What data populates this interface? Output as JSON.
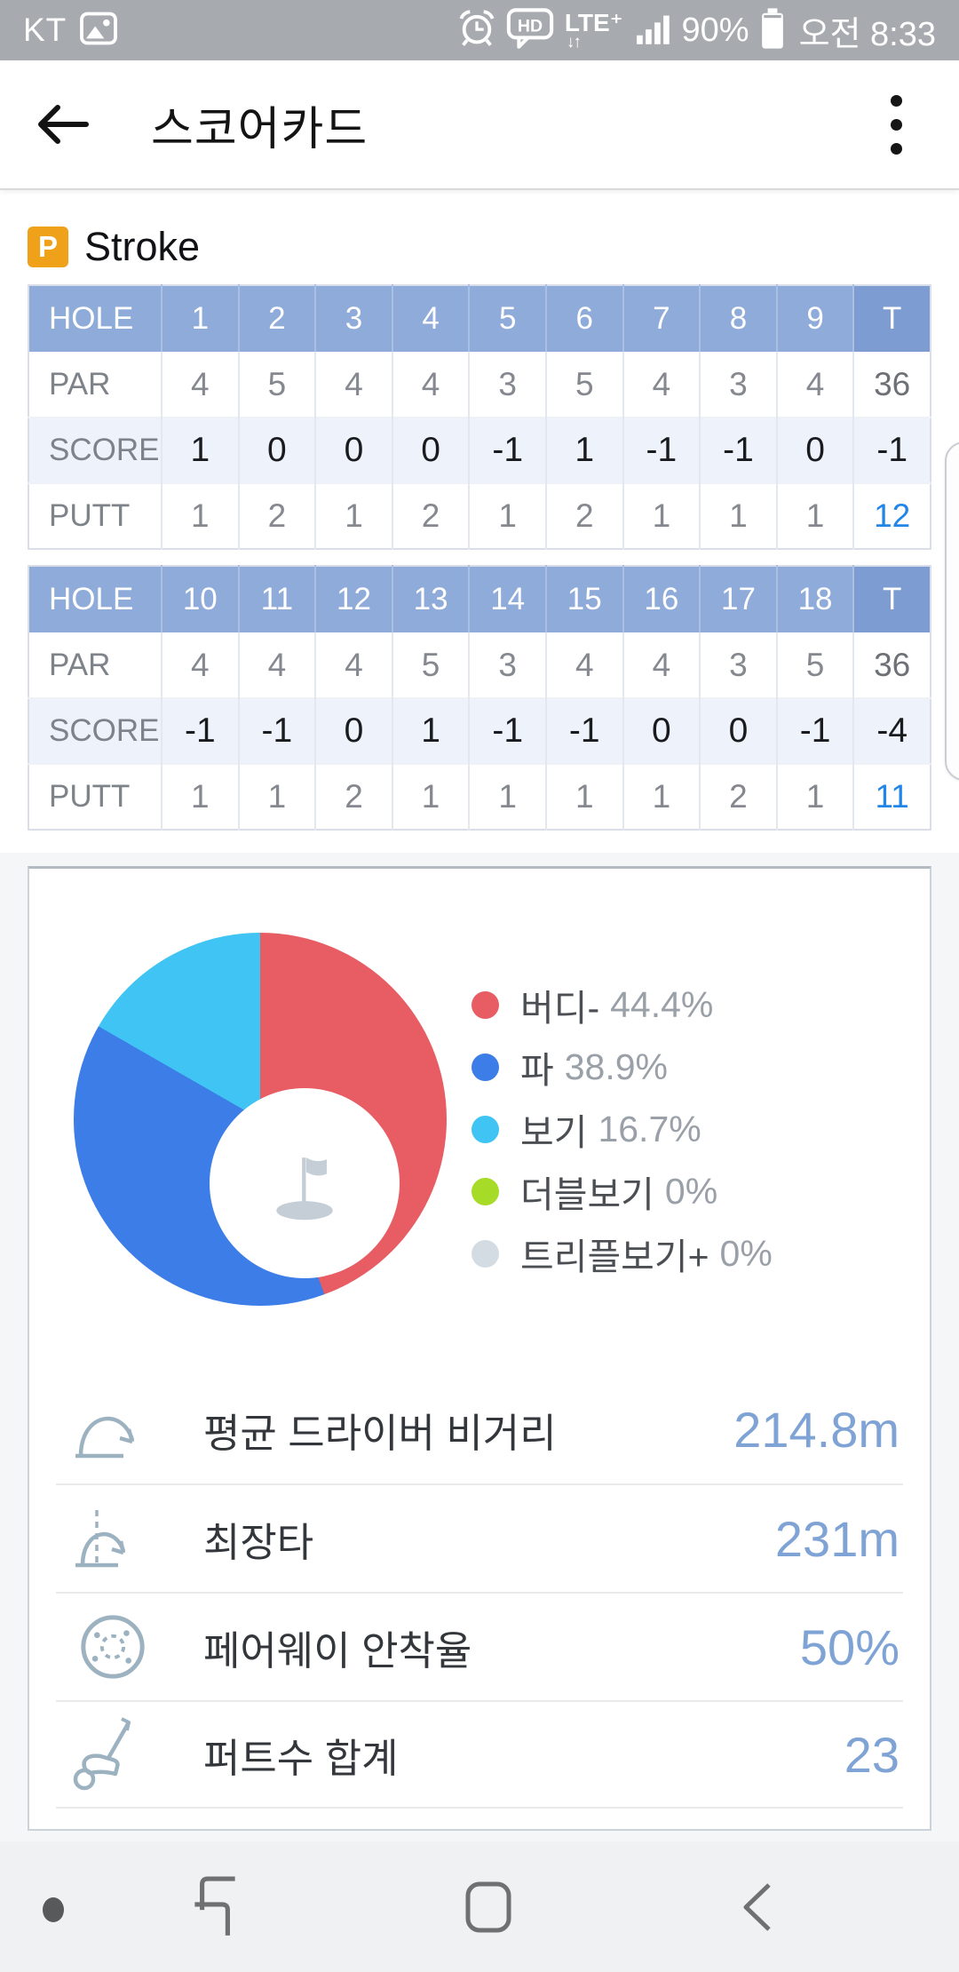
{
  "status_bar": {
    "carrier": "KT",
    "battery": "90%",
    "time": "오전 8:33",
    "icons": [
      "gallery-icon",
      "alarm-icon",
      "hd-voice-icon",
      "lte-plus-icon",
      "signal-strength-icon",
      "battery-icon"
    ],
    "lte_label": "LTE⁺",
    "lte_arrows": "↓↑"
  },
  "header": {
    "title": "스코어카드"
  },
  "scorecard": {
    "badge": "P",
    "mode": "Stroke",
    "tables": [
      {
        "header": [
          "HOLE",
          "1",
          "2",
          "3",
          "4",
          "5",
          "6",
          "7",
          "8",
          "9",
          "T"
        ],
        "rows": [
          {
            "label": "PAR",
            "values": [
              "4",
              "5",
              "4",
              "4",
              "3",
              "5",
              "4",
              "3",
              "4"
            ],
            "total": "36"
          },
          {
            "label": "SCORE",
            "values": [
              "1",
              "0",
              "0",
              "0",
              "-1",
              "1",
              "-1",
              "-1",
              "0"
            ],
            "total": "-1"
          },
          {
            "label": "PUTT",
            "values": [
              "1",
              "2",
              "1",
              "2",
              "1",
              "2",
              "1",
              "1",
              "1"
            ],
            "total": "12"
          }
        ]
      },
      {
        "header": [
          "HOLE",
          "10",
          "11",
          "12",
          "13",
          "14",
          "15",
          "16",
          "17",
          "18",
          "T"
        ],
        "rows": [
          {
            "label": "PAR",
            "values": [
              "4",
              "4",
              "4",
              "5",
              "3",
              "4",
              "4",
              "3",
              "5"
            ],
            "total": "36"
          },
          {
            "label": "SCORE",
            "values": [
              "-1",
              "-1",
              "0",
              "1",
              "-1",
              "-1",
              "0",
              "0",
              "-1"
            ],
            "total": "-4"
          },
          {
            "label": "PUTT",
            "values": [
              "1",
              "1",
              "2",
              "1",
              "1",
              "1",
              "1",
              "2",
              "1"
            ],
            "total": "11"
          }
        ]
      }
    ]
  },
  "chart_data": {
    "type": "pie",
    "donut": true,
    "legend_position": "right",
    "center_icon": "golf-flag-icon",
    "slices": [
      {
        "label": "버디-",
        "value": 44.4,
        "display": "44.4%",
        "color": "#e85c64"
      },
      {
        "label": "파",
        "value": 38.9,
        "display": "38.9%",
        "color": "#3c7de7"
      },
      {
        "label": "보기",
        "value": 16.7,
        "display": "16.7%",
        "color": "#3fc4f3"
      },
      {
        "label": "더블보기",
        "value": 0,
        "display": "0%",
        "color": "#a6db27"
      },
      {
        "label": "트리플보기+",
        "value": 0,
        "display": "0%",
        "color": "#d4dce3"
      }
    ]
  },
  "stats": [
    {
      "icon": "drive-distance-icon",
      "label": "평균 드라이버 비거리",
      "value": "214.8m"
    },
    {
      "icon": "longest-drive-icon",
      "label": "최장타",
      "value": "231m"
    },
    {
      "icon": "fairway-hit-icon",
      "label": "페어웨이 안착율",
      "value": "50%"
    },
    {
      "icon": "putt-count-icon",
      "label": "퍼트수 합계",
      "value": "23"
    }
  ],
  "nav_bar": {
    "icons": [
      "edge-handle-dot",
      "recents-icon",
      "home-icon",
      "back-icon"
    ]
  }
}
